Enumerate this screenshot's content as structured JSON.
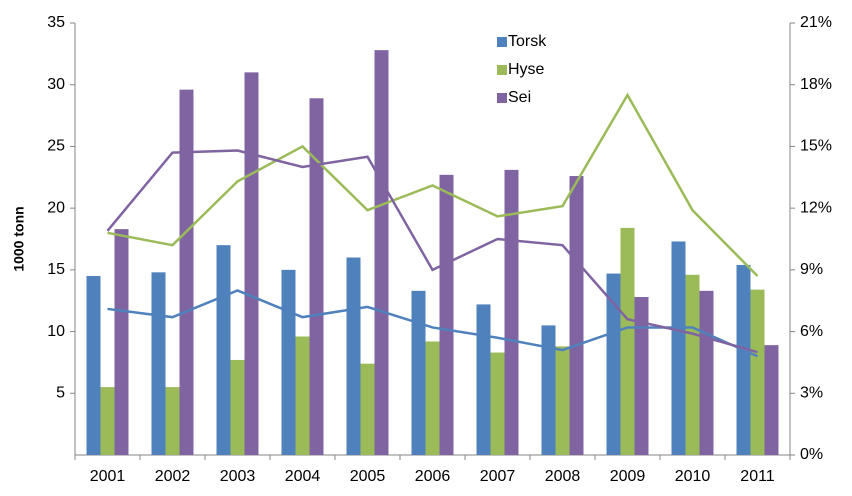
{
  "chart_data": {
    "type": "bar",
    "y_label": "1000 tonn",
    "categories": [
      "2001",
      "2002",
      "2003",
      "2004",
      "2005",
      "2006",
      "2007",
      "2008",
      "2009",
      "2010",
      "2011"
    ],
    "series": [
      {
        "name": "Torsk",
        "color": "#4f81bd",
        "values": [
          14.5,
          14.8,
          17.0,
          15.0,
          16.0,
          13.3,
          12.2,
          10.5,
          14.7,
          17.3,
          15.4
        ]
      },
      {
        "name": "Hyse",
        "color": "#9bbb59",
        "values": [
          5.5,
          5.5,
          7.7,
          9.6,
          7.4,
          9.2,
          8.3,
          8.8,
          18.4,
          14.6,
          13.4
        ]
      },
      {
        "name": "Sei",
        "color": "#8064a2",
        "values": [
          18.3,
          29.6,
          31.0,
          28.9,
          32.8,
          22.7,
          23.1,
          22.6,
          12.8,
          13.3,
          8.9
        ]
      },
      {
        "type": "line",
        "axis": "y2",
        "color": "#4f81bd",
        "values": [
          7.1,
          6.7,
          8.0,
          6.7,
          7.2,
          6.2,
          5.7,
          5.1,
          6.2,
          6.2,
          4.8
        ]
      },
      {
        "type": "line",
        "axis": "y2",
        "color": "#9bbb59",
        "values": [
          10.8,
          10.2,
          13.3,
          15.0,
          11.9,
          13.1,
          11.6,
          12.1,
          17.5,
          11.9,
          8.7
        ]
      },
      {
        "type": "line",
        "axis": "y2",
        "color": "#8064a2",
        "values": [
          10.9,
          14.7,
          14.8,
          14.0,
          14.5,
          9.0,
          10.5,
          10.2,
          6.6,
          5.9,
          5.0
        ]
      }
    ],
    "ylim": [
      0,
      35
    ],
    "yticks": [
      5,
      10,
      15,
      20,
      25,
      30,
      35
    ],
    "y2lim": [
      0,
      21
    ],
    "y2ticks": [
      {
        "value": 0,
        "label": "0%"
      },
      {
        "value": 3,
        "label": "3%"
      },
      {
        "value": 6,
        "label": "6%"
      },
      {
        "value": 9,
        "label": "9%"
      },
      {
        "value": 12,
        "label": "12%"
      },
      {
        "value": 15,
        "label": "15%"
      },
      {
        "value": 18,
        "label": "18%"
      },
      {
        "value": 21,
        "label": "21%"
      }
    ],
    "grid": false,
    "legend": "top"
  }
}
